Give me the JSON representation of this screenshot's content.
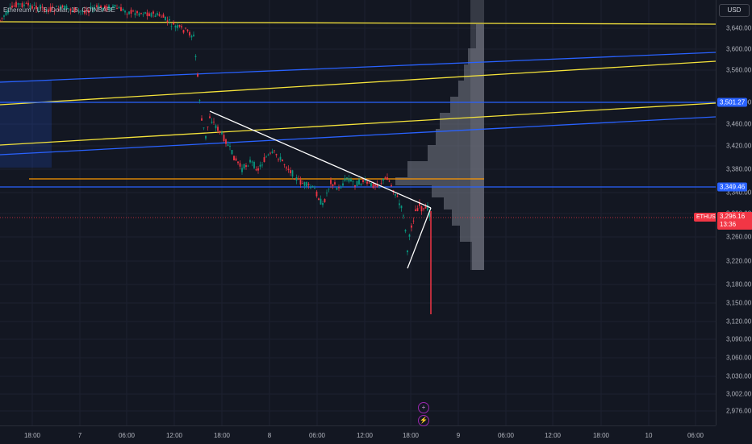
{
  "legend": {
    "text": "Ethereum / U.S. Dollar, 15, COINBASE"
  },
  "currency_button": "USD",
  "symbol_tag": "ETHUSD",
  "current_price": {
    "price": "3,296.16",
    "countdown": "13:36"
  },
  "price_levels": [
    {
      "label": "3,501.27",
      "color": "#2962ff",
      "value": 3501.27
    },
    {
      "label": "3,349.46",
      "color": "#2962ff",
      "value": 3349.46
    }
  ],
  "price_ticks": [
    "3,640.00",
    "3,600.00",
    "3,560.00",
    "3,510.00",
    "3,460.00",
    "3,420.00",
    "3,380.00",
    "3,340.00",
    "3,300.00",
    "3,260.00",
    "3,220.00",
    "3,180.00",
    "3,150.00",
    "3,120.00",
    "3,090.00",
    "3,060.00",
    "3,030.00",
    "3,002.00",
    "2,976.00"
  ],
  "time_ticks": [
    "18:00",
    "7",
    "06:00",
    "12:00",
    "18:00",
    "8",
    "06:00",
    "12:00",
    "18:00",
    "9",
    "06:00",
    "12:00",
    "18:00",
    "10",
    "06:00"
  ],
  "event_icons": [
    "plus-circle-icon",
    "lightning-icon"
  ],
  "colors": {
    "background": "#131722",
    "up": "#089981",
    "down": "#f23645",
    "trendline": "#ffffff",
    "yellow": "#f5e33b",
    "blue": "#2962ff",
    "orange": "#ff9800",
    "volume_profile": "#787b86"
  }
}
